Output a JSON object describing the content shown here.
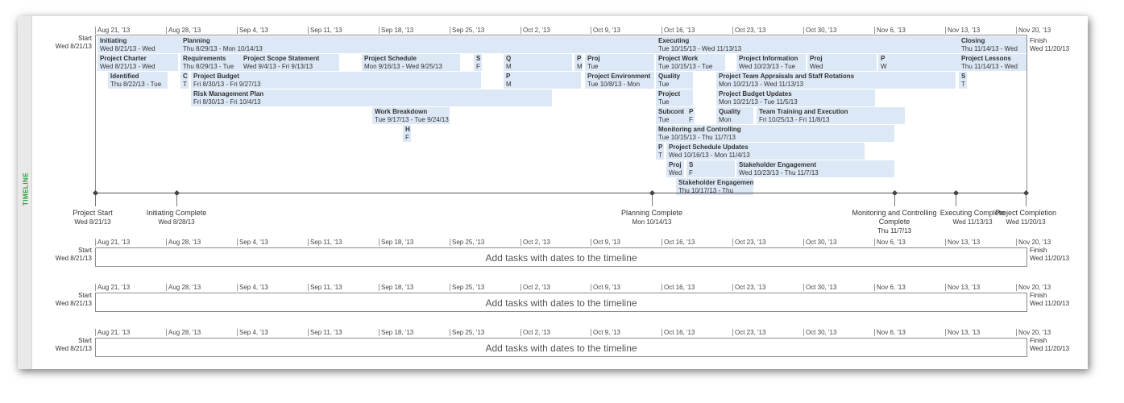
{
  "panel": {
    "side_label": "TIMELINE"
  },
  "ticks": [
    "Aug 21, '13",
    "Aug 28, '13",
    "Sep 4, '13",
    "Sep 11, '13",
    "Sep 18, '13",
    "Sep 25, '13",
    "Oct 2, '13",
    "Oct 9, '13",
    "Oct 16, '13",
    "Oct 23, '13",
    "Oct 30, '13",
    "Nov 6, '13",
    "Nov 13, '13",
    "Nov 20, '13"
  ],
  "start": {
    "label": "Start",
    "date": "Wed 8/21/13"
  },
  "finish": {
    "label": "Finish",
    "date": "Wed 11/20/13"
  },
  "tasks": [
    {
      "name": "Initiating",
      "dates": "Wed 8/21/13 - Wed"
    },
    {
      "name": "Planning",
      "dates": "Thu 8/29/13 - Mon 10/14/13"
    },
    {
      "name": "Executing",
      "dates": "Tue 10/15/13 - Wed 11/13/13"
    },
    {
      "name": "Closing",
      "dates": "Thu 11/14/13 - Wed"
    },
    {
      "name": "Project Charter",
      "dates": "Wed 8/21/13 - Wed"
    },
    {
      "name": "Requirements",
      "dates": "Thu 8/29/13 - Tue"
    },
    {
      "name": "Project Scope Statement",
      "dates": "Wed 9/4/13 - Fri 9/13/13"
    },
    {
      "name": "Project Schedule",
      "dates": "Mon 9/16/13 - Wed 9/25/13"
    },
    {
      "name": "S",
      "dates": "F"
    },
    {
      "name": "Q",
      "dates": "M"
    },
    {
      "name": "P",
      "dates": "M"
    },
    {
      "name": "Proj",
      "dates": "Tue"
    },
    {
      "name": "Project Work",
      "dates": "Tue 10/15/13 - Tue"
    },
    {
      "name": "Project Information",
      "dates": "Wed 10/23/13 - Tue"
    },
    {
      "name": "Proj",
      "dates": "Wed"
    },
    {
      "name": "P",
      "dates": "W"
    },
    {
      "name": "Project Lessons",
      "dates": "Thu 11/14/13 - Wed"
    },
    {
      "name": "Identified",
      "dates": "Thu 8/22/13 - Tue"
    },
    {
      "name": "C",
      "dates": "T"
    },
    {
      "name": "Project Budget",
      "dates": "Fri 8/30/13 - Fri 9/27/13"
    },
    {
      "name": "P",
      "dates": "M"
    },
    {
      "name": "Project Environment",
      "dates": "Tue 10/8/13 - Mon"
    },
    {
      "name": "Quality",
      "dates": "Tue"
    },
    {
      "name": "Project Team Appraisals and Staff Rotations",
      "dates": "Mon 10/21/13 - Wed 11/13/13"
    },
    {
      "name": "S",
      "dates": "T"
    },
    {
      "name": "Risk Management Plan",
      "dates": "Fri 8/30/13 - Fri 10/4/13"
    },
    {
      "name": "Project",
      "dates": "Tue"
    },
    {
      "name": "Project Budget Updates",
      "dates": "Mon 10/21/13 - Tue 11/5/13"
    },
    {
      "name": "Work Breakdown",
      "dates": "Tue 9/17/13 - Tue 9/24/13"
    },
    {
      "name": "Subcont",
      "dates": "Tue"
    },
    {
      "name": "P",
      "dates": "F"
    },
    {
      "name": "Quality",
      "dates": "Mon"
    },
    {
      "name": "Team Training and Execution",
      "dates": "Fri 10/25/13 - Fri 11/8/13"
    },
    {
      "name": "H",
      "dates": "F"
    },
    {
      "name": "Monitoring and Controlling",
      "dates": "Tue 10/15/13 - Thu 11/7/13"
    },
    {
      "name": "P",
      "dates": "T"
    },
    {
      "name": "Project Schedule Updates",
      "dates": "Wed 10/16/13 - Mon 11/4/13"
    },
    {
      "name": "Proj",
      "dates": "Wed"
    },
    {
      "name": "S",
      "dates": "F"
    },
    {
      "name": "Stakeholder Engagement",
      "dates": "Wed 10/23/13 - Thu 11/7/13"
    },
    {
      "name": "Stakeholder Engagement",
      "dates": "Thu 10/17/13 - Thu"
    }
  ],
  "milestones": [
    {
      "name": "Project Start",
      "date": "Wed 8/21/13"
    },
    {
      "name": "Initiating Complete",
      "date": "Wed 8/28/13"
    },
    {
      "name": "Planning Complete",
      "date": "Mon 10/14/13"
    },
    {
      "name": "Monitoring and Controlling Complete",
      "date": "Thu 11/7/13"
    },
    {
      "name": "Executing Complete",
      "date": "Wed 11/13/13"
    },
    {
      "name": "Project Completion",
      "date": "Wed 11/20/13"
    }
  ],
  "empty_timelines": [
    {
      "message": "Add tasks with dates to the timeline"
    },
    {
      "message": "Add tasks with dates to the timeline"
    },
    {
      "message": "Add tasks with dates to the timeline"
    }
  ]
}
